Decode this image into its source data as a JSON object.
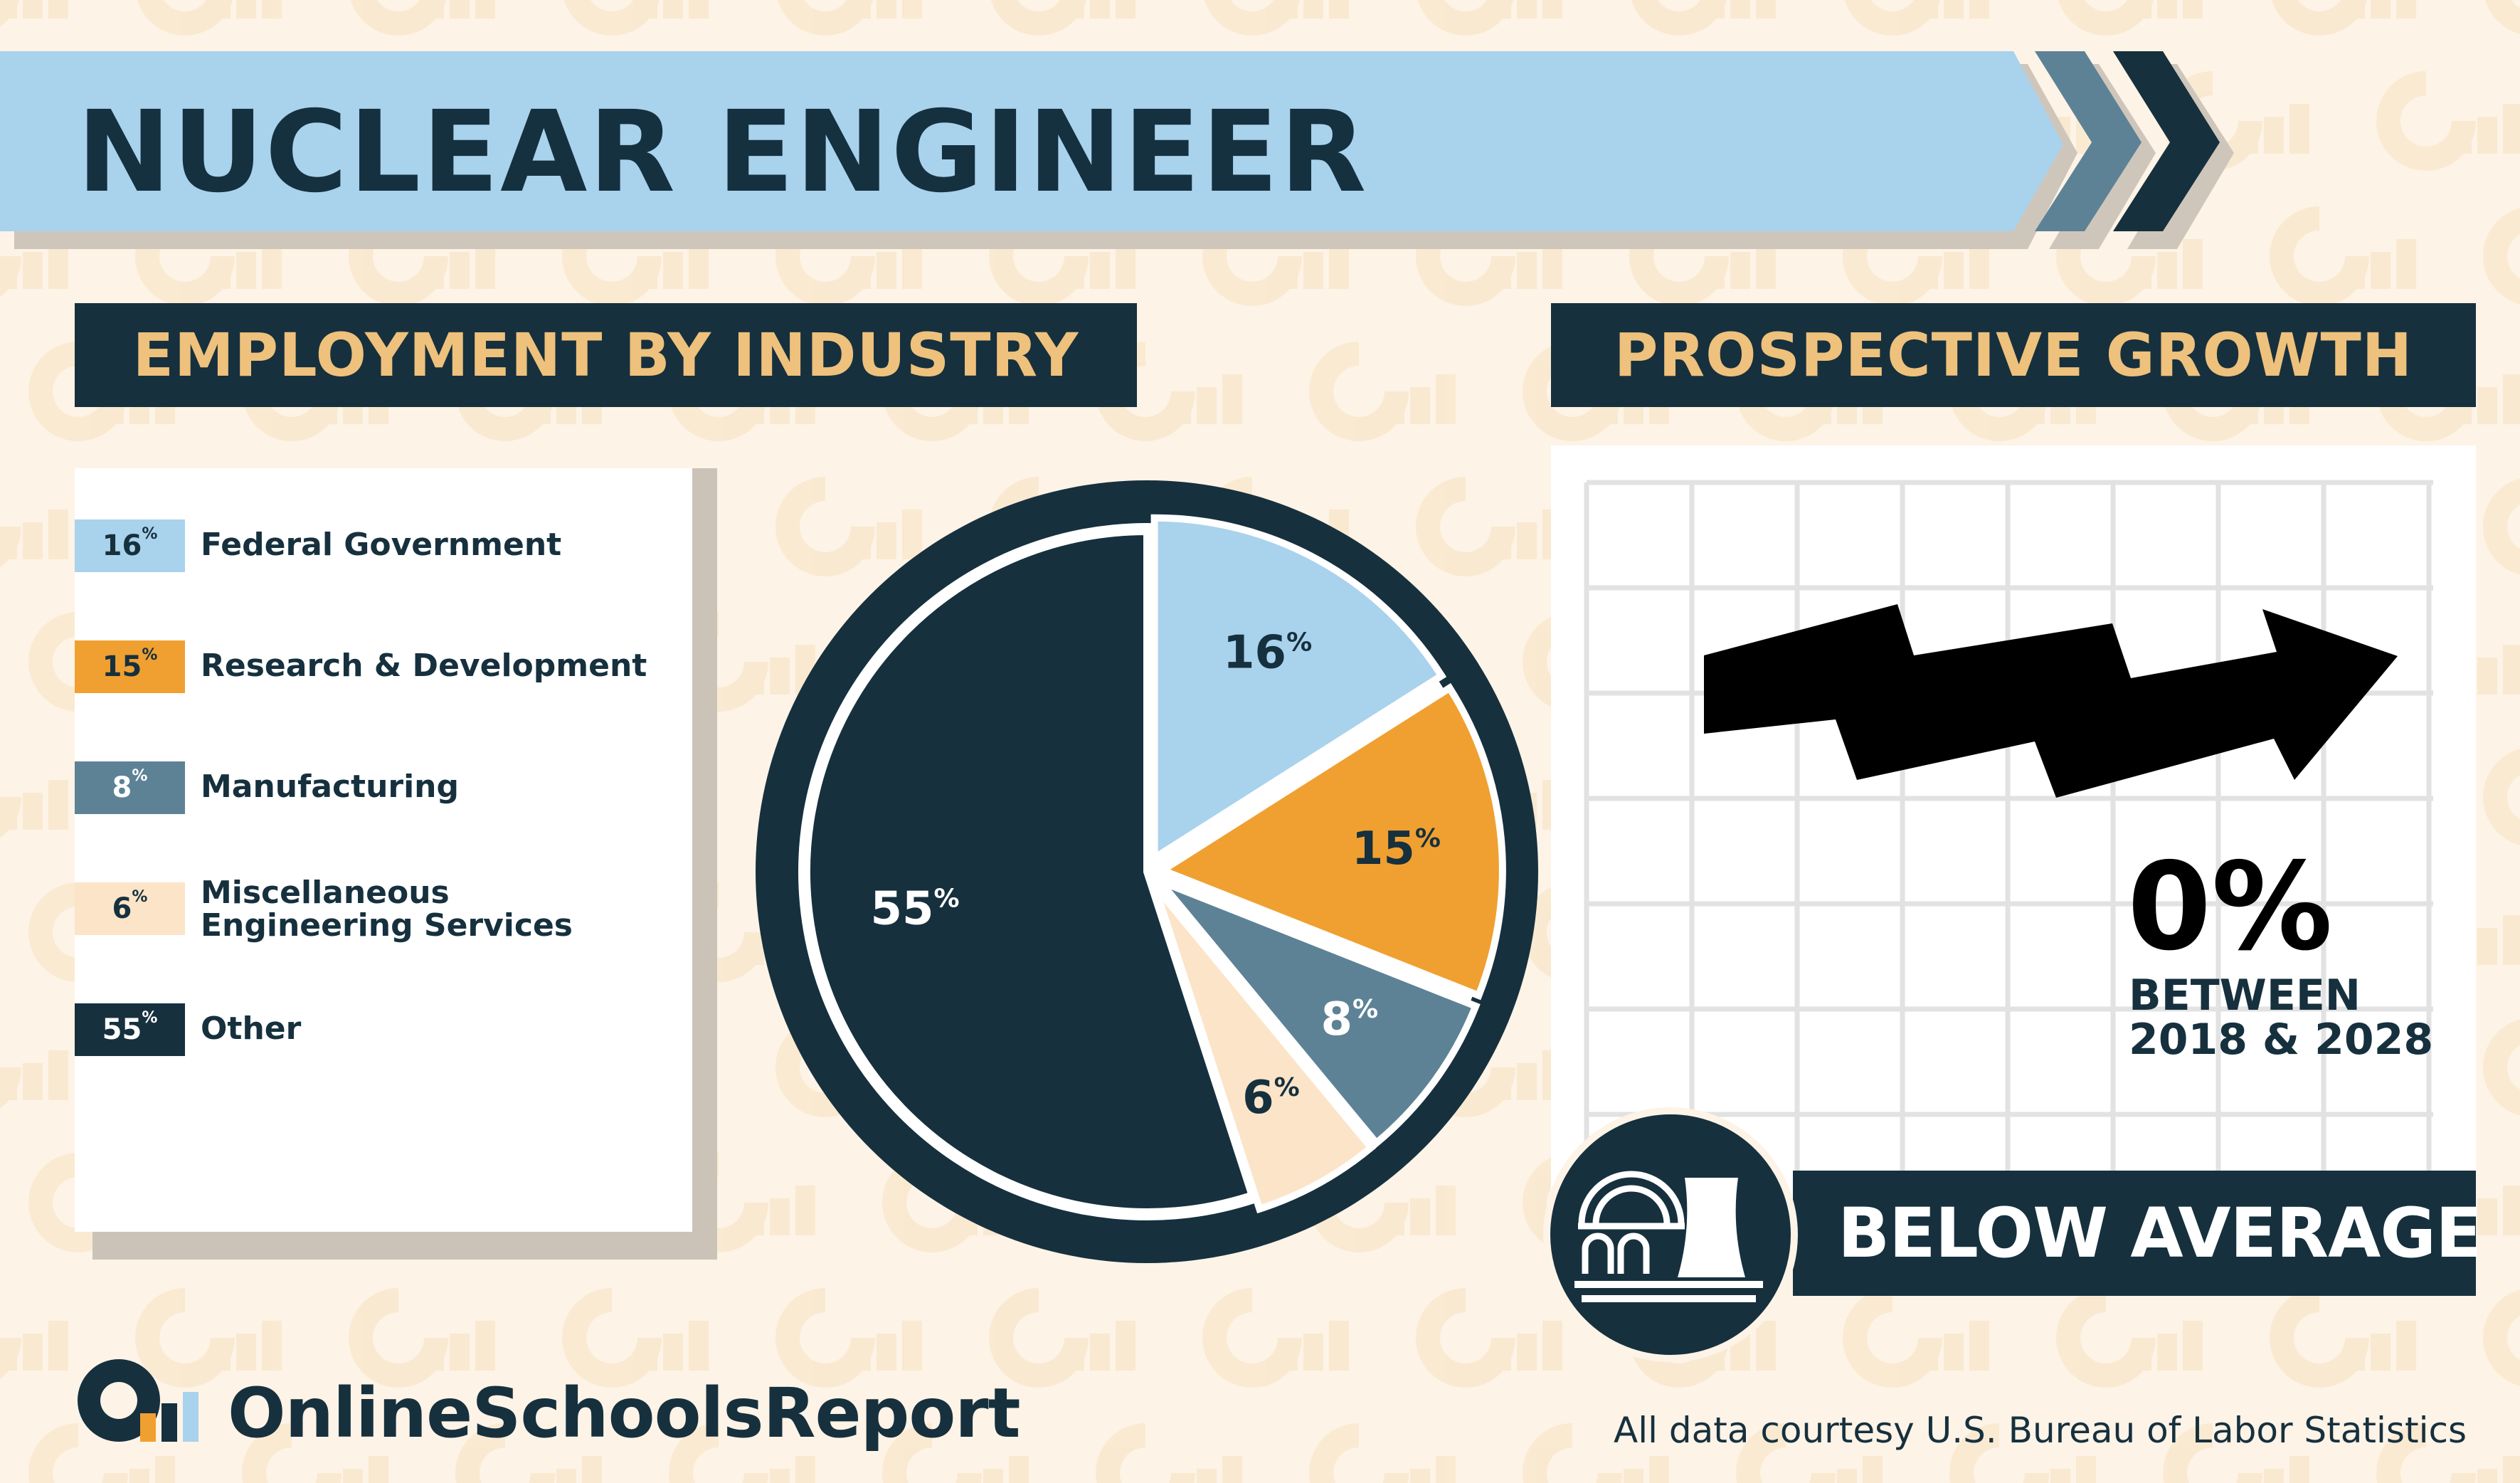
{
  "title": "NUCLEAR ENGINEER",
  "sections": {
    "employment_header": "EMPLOYMENT BY INDUSTRY",
    "growth_header": "PROSPECTIVE GROWTH"
  },
  "colors": {
    "background": "#fdf3e6",
    "navy": "#16303e",
    "light_blue": "#a9d2ec",
    "orange": "#f0a030",
    "steel_blue": "#5d8296",
    "peach": "#fbe4c8",
    "gold": "#eec17c"
  },
  "legend": [
    {
      "pct": "16",
      "label": "Federal Government",
      "color": "#a9d2ec",
      "text_color": "#16303e"
    },
    {
      "pct": "15",
      "label": "Research & Development",
      "color": "#f0a030",
      "text_color": "#16303e"
    },
    {
      "pct": "8",
      "label": "Manufacturing",
      "color": "#5d8296",
      "text_color": "#ffffff"
    },
    {
      "pct": "6",
      "label": "Miscellaneous",
      "label2": "Engineering Services",
      "color": "#fbe4c8",
      "text_color": "#16303e"
    },
    {
      "pct": "55",
      "label": "Other",
      "color": "#16303e",
      "text_color": "#ffffff"
    }
  ],
  "percent_sign": "%",
  "chart_data": {
    "type": "pie",
    "title": "EMPLOYMENT BY INDUSTRY",
    "categories": [
      "Federal Government",
      "Research & Development",
      "Manufacturing",
      "Miscellaneous Engineering Services",
      "Other"
    ],
    "values": [
      16,
      15,
      8,
      6,
      55
    ],
    "colors": [
      "#a9d2ec",
      "#f0a030",
      "#5d8296",
      "#fbe4c8",
      "#16303e"
    ],
    "label_colors": [
      "#16303e",
      "#16303e",
      "#ffffff",
      "#16303e",
      "#ffffff"
    ],
    "labels": [
      "16",
      "15",
      "8",
      "6",
      "55"
    ]
  },
  "growth": {
    "value": "0%",
    "line1": "BETWEEN",
    "line2": "2018 & 2028",
    "rating": "BELOW AVERAGE"
  },
  "footer": {
    "brand": "OnlineSchoolsReport",
    "source": "All data courtesy U.S. Bureau of Labor Statistics"
  }
}
